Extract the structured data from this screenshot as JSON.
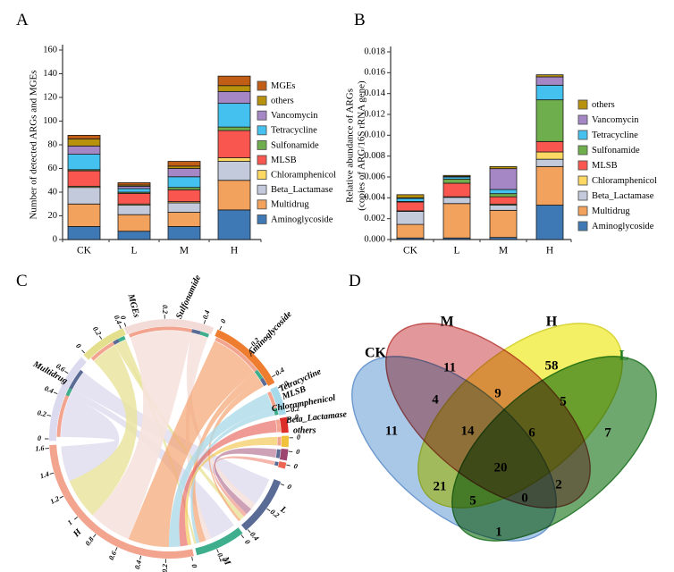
{
  "panels": {
    "a": "A",
    "b": "B",
    "c": "C",
    "d": "D"
  },
  "chart_data": [
    {
      "id": "A",
      "type": "bar",
      "stacked": true,
      "ylabel": "Number of detected ARGs and MGEs",
      "ylim": [
        0,
        160
      ],
      "ytick_step": 20,
      "ytick_decimals": 0,
      "grid": false,
      "legend_position": "right",
      "categories": [
        "CK",
        "L",
        "M",
        "H"
      ],
      "series": [
        {
          "name": "Aminoglycoside",
          "color": "#3e78b5",
          "values": [
            11,
            7,
            11,
            25
          ]
        },
        {
          "name": "Multidrug",
          "color": "#f2a25c",
          "values": [
            19,
            14,
            12,
            25
          ]
        },
        {
          "name": "Beta_Lactamase",
          "color": "#c3cadc",
          "values": [
            14,
            8,
            8,
            16
          ]
        },
        {
          "name": "Chloramphenicol",
          "color": "#fdd964",
          "values": [
            1,
            1,
            1,
            3
          ]
        },
        {
          "name": "MLSB",
          "color": "#f8564f",
          "values": [
            13,
            9,
            10,
            23
          ]
        },
        {
          "name": "Sulfonamide",
          "color": "#6fae4c",
          "values": [
            1,
            1,
            2,
            3
          ]
        },
        {
          "name": "Tetracycline",
          "color": "#45c1f0",
          "values": [
            13,
            3,
            9,
            20
          ]
        },
        {
          "name": "Vancomycin",
          "color": "#a687c6",
          "values": [
            7,
            2,
            7,
            10
          ]
        },
        {
          "name": "others",
          "color": "#b8920d",
          "values": [
            6,
            1,
            2,
            5
          ]
        },
        {
          "name": "MGEs",
          "color": "#c15d15",
          "values": [
            3,
            2,
            4,
            8
          ]
        }
      ]
    },
    {
      "id": "B",
      "type": "bar",
      "stacked": true,
      "ylabel_lines": [
        "Relative abundance of ARGs",
        "(copies of  ARG/16S rRNA gene)"
      ],
      "ylim": [
        0,
        0.018
      ],
      "ytick_step": 0.002,
      "ytick_decimals": 3,
      "grid": false,
      "legend_position": "right",
      "categories": [
        "CK",
        "L",
        "M",
        "H"
      ],
      "series": [
        {
          "name": "Aminoglycoside",
          "color": "#3e78b5",
          "values": [
            0.00015,
            0.00015,
            0.0002,
            0.0033
          ]
        },
        {
          "name": "Multidrug",
          "color": "#f2a25c",
          "values": [
            0.0013,
            0.0033,
            0.0026,
            0.0037
          ]
        },
        {
          "name": "Beta_Lactamase",
          "color": "#c3cadc",
          "values": [
            0.00125,
            0.0006,
            0.0005,
            0.0007
          ]
        },
        {
          "name": "Chloramphenicol",
          "color": "#fdd964",
          "values": [
            5e-05,
            5e-05,
            0.0001,
            0.0007
          ]
        },
        {
          "name": "MLSB",
          "color": "#f8564f",
          "values": [
            0.00085,
            0.0013,
            0.0007,
            0.001
          ]
        },
        {
          "name": "Sulfonamide",
          "color": "#6fae4c",
          "values": [
            5e-05,
            0.0004,
            0.0003,
            0.004
          ]
        },
        {
          "name": "Tetracycline",
          "color": "#45c1f0",
          "values": [
            0.0003,
            0.0002,
            0.0004,
            0.0014
          ]
        },
        {
          "name": "Vancomycin",
          "color": "#a687c6",
          "values": [
            5e-05,
            5e-05,
            0.002,
            0.0008
          ]
        },
        {
          "name": "others",
          "color": "#b8920d",
          "values": [
            0.0003,
            0.0001,
            0.0002,
            0.0002
          ]
        }
      ]
    },
    {
      "id": "C",
      "type": "chord",
      "segments": [
        {
          "name": "Sulfonamide",
          "a0": -22,
          "a1": 22,
          "color": "#f3dcd8",
          "label": {
            "a": 8,
            "r": 160,
            "rot": -65
          },
          "ticks": [
            {
              "t": "0",
              "a": -21
            },
            {
              "t": "0.2",
              "a": -2
            },
            {
              "t": "0.4",
              "a": 17
            }
          ]
        },
        {
          "name": "Aminoglycoside",
          "a0": 24,
          "a1": 62,
          "color": "#ee7d2f",
          "label": {
            "a": 44,
            "r": 163
          },
          "ticks": [
            {
              "t": "0",
              "a": 25
            },
            {
              "t": "0.2",
              "a": 42
            },
            {
              "t": "0.4",
              "a": 59
            }
          ]
        },
        {
          "name": "MLSB",
          "a0": 64,
          "a1": 78,
          "color": "#a6d9e9",
          "label": {
            "a": 70,
            "r": 149
          },
          "ticks": [
            {
              "t": "0",
              "a": 65
            },
            {
              "t": "0.2",
              "a": 77
            }
          ]
        },
        {
          "name": "Tetracycline",
          "a0": 79.5,
          "a1": 87,
          "color": "#dd2f2a",
          "label": {
            "x": 313,
            "y": 136,
            "rot": -24,
            "anchor": "start"
          },
          "ticks": [
            {
              "t": "0",
              "a": 80.5
            }
          ]
        },
        {
          "name": "Chloramphenicol",
          "a0": 88.5,
          "a1": 94,
          "color": "#f1c13b",
          "label": {
            "x": 304,
            "y": 158,
            "rot": -10,
            "anchor": "start"
          },
          "ticks": [
            {
              "t": "0",
              "a": 89.5
            }
          ]
        },
        {
          "name": "Beta_Lactamase",
          "a0": 95,
          "a1": 100.5,
          "color": "#9c4570",
          "label": {
            "x": 320,
            "y": 171,
            "rot": -6,
            "anchor": "start"
          },
          "ticks": [
            {
              "t": "0",
              "a": 96
            }
          ]
        },
        {
          "name": "others",
          "a0": 101.5,
          "a1": 104.5,
          "color": "#ed6652",
          "label": {
            "x": 328,
            "y": 182,
            "rot": 0,
            "anchor": "start"
          },
          "ticks": [
            {
              "t": "0",
              "a": 102.5
            }
          ]
        },
        {
          "name": "L",
          "a0": 111,
          "a1": 140,
          "color": "#5a6b96",
          "label": {
            "a": 122,
            "r": 151
          },
          "ticks": [
            {
              "t": "0",
              "a": 112
            },
            {
              "t": "0.2",
              "a": 125.5
            },
            {
              "t": "0.4",
              "a": 139
            }
          ]
        },
        {
          "name": "M",
          "a0": 142,
          "a1": 166.5,
          "color": "#3fae8c",
          "label": {
            "a": 155,
            "r": 151
          },
          "ticks": [
            {
              "t": "0",
              "a": 143
            },
            {
              "t": "0.2",
              "a": 156.5
            }
          ]
        },
        {
          "name": "H",
          "a0": 168,
          "a1": 267,
          "color": "#f2a48f",
          "label": {
            "a": 224,
            "r": 147
          },
          "ticks": [
            {
              "t": "0",
              "a": 169
            },
            {
              "t": "0.2",
              "a": 181.5
            },
            {
              "t": "0.4",
              "a": 193.5
            },
            {
              "t": "0.6",
              "a": 205.5
            },
            {
              "t": "0.8",
              "a": 217.5
            },
            {
              "t": "1",
              "a": 229.5
            },
            {
              "t": "1.2",
              "a": 241.5
            },
            {
              "t": "1.4",
              "a": 253.5
            },
            {
              "t": "1.6",
              "a": 265.5
            }
          ]
        },
        {
          "name": "Multidrug",
          "a0": 269,
          "a1": 313,
          "color": "#dcdaef",
          "label": {
            "a": 299,
            "r": 152
          },
          "ticks": [
            {
              "t": "0",
              "a": 270
            },
            {
              "t": "0.2",
              "a": 281
            },
            {
              "t": "0.4",
              "a": 292
            },
            {
              "t": "0.6",
              "a": 303
            }
          ]
        },
        {
          "name": "MGEs",
          "a0": 314.5,
          "a1": 337.5,
          "color": "#e4df8d",
          "label": {
            "a": 345,
            "r": 154
          },
          "ticks": [
            {
              "t": "0",
              "a": 315.5
            },
            {
              "t": "0.2",
              "a": 326
            },
            {
              "t": "0.4",
              "a": 336.5
            }
          ]
        }
      ],
      "ribbons": [
        {
          "from": "Multidrug",
          "to": "H",
          "s": [
            271,
            293
          ],
          "t": [
            247,
            266
          ],
          "color": "#dcdaee",
          "op": 0.75
        },
        {
          "from": "Multidrug",
          "to": "M",
          "s": [
            293,
            297
          ],
          "t": [
            143,
            157
          ],
          "color": "#dcdaee",
          "op": 0.75
        },
        {
          "from": "Multidrug",
          "to": "L",
          "s": [
            297,
            308
          ],
          "t": [
            112,
            127
          ],
          "color": "#dcdaee",
          "op": 0.75
        },
        {
          "from": "MGEs",
          "to": "H",
          "s": [
            316,
            330
          ],
          "t": [
            225,
            247
          ],
          "color": "#e9e49a",
          "op": 0.8
        },
        {
          "from": "MGEs",
          "to": "L",
          "s": [
            330,
            333
          ],
          "t": [
            136,
            138.5
          ],
          "color": "#e9e49a",
          "op": 0.8
        },
        {
          "from": "MGEs",
          "to": "M",
          "s": [
            333,
            336.5
          ],
          "t": [
            165.3,
            166.5
          ],
          "color": "#e9e49a",
          "op": 0.8
        },
        {
          "from": "Sulfonamide",
          "to": "H",
          "s": [
            -21,
            12
          ],
          "t": [
            202,
            225
          ],
          "color": "#f6e2de",
          "op": 0.9
        },
        {
          "from": "Sulfonamide",
          "to": "L",
          "s": [
            12,
            16.5
          ],
          "t": [
            127,
            130.5
          ],
          "color": "#f6e2de",
          "op": 0.9
        },
        {
          "from": "Sulfonamide",
          "to": "M",
          "s": [
            16.5,
            21
          ],
          "t": [
            157,
            160
          ],
          "color": "#f6e2de",
          "op": 0.9
        },
        {
          "from": "Aminoglycoside",
          "to": "H",
          "s": [
            25,
            52
          ],
          "t": [
            180,
            202
          ],
          "color": "#f4a472",
          "op": 0.7
        },
        {
          "from": "Aminoglycoside",
          "to": "M",
          "s": [
            52,
            57
          ],
          "t": [
            160,
            163.5
          ],
          "color": "#f4a472",
          "op": 0.7
        },
        {
          "from": "Aminoglycoside",
          "to": "L",
          "s": [
            57,
            61
          ],
          "t": [
            138.5,
            139.8
          ],
          "color": "#f4a472",
          "op": 0.7
        },
        {
          "from": "MLSB",
          "to": "H",
          "s": [
            65,
            74
          ],
          "t": [
            174,
            180
          ],
          "color": "#aedbe9",
          "op": 0.8
        },
        {
          "from": "MLSB",
          "to": "M",
          "s": [
            74,
            77.5
          ],
          "t": [
            163.5,
            165.3
          ],
          "color": "#aedbe9",
          "op": 0.8
        },
        {
          "from": "Tetracycline",
          "to": "H",
          "s": [
            80,
            86.5
          ],
          "t": [
            170,
            174
          ],
          "color": "#e4574e",
          "op": 0.6
        },
        {
          "from": "Chloramphenicol",
          "to": "H",
          "s": [
            89,
            93.5
          ],
          "t": [
            168,
            170
          ],
          "color": "#f2c54f",
          "op": 0.65
        },
        {
          "from": "Beta_Lactamase",
          "to": "L",
          "s": [
            95.5,
            100
          ],
          "t": [
            130.5,
            134
          ],
          "color": "#9c4570",
          "op": 0.5
        },
        {
          "from": "others",
          "to": "L",
          "s": [
            102,
            104
          ],
          "t": [
            134,
            136
          ],
          "color": "#ee8574",
          "op": 0.6
        }
      ]
    },
    {
      "id": "D",
      "type": "venn4",
      "sets": [
        {
          "name": "CK",
          "fill": "#a9c7e6",
          "stroke": "#6b98cf",
          "label_color": "#000000"
        },
        {
          "name": "M",
          "fill": "#e2989a",
          "stroke": "#c0504d",
          "label_color": "#000000"
        },
        {
          "name": "H",
          "fill": "#f3f066",
          "stroke": "#d6d337",
          "label_color": "#000000"
        },
        {
          "name": "L",
          "fill": "#6fa86f",
          "stroke": "#2f7d32",
          "label_color": "#1e7b1e"
        }
      ],
      "regions": [
        {
          "sets": "CK",
          "value": 11
        },
        {
          "sets": "M",
          "value": 11
        },
        {
          "sets": "H",
          "value": 58
        },
        {
          "sets": "L",
          "value": 7
        },
        {
          "sets": "CK∩M",
          "value": 4
        },
        {
          "sets": "M∩H",
          "value": 9
        },
        {
          "sets": "H∩L",
          "value": 5
        },
        {
          "sets": "CK∩H",
          "value": 21
        },
        {
          "sets": "M∩L",
          "value": 2
        },
        {
          "sets": "CK∩L",
          "value": 1
        },
        {
          "sets": "CK∩M∩H",
          "value": 14
        },
        {
          "sets": "M∩H∩L",
          "value": 6
        },
        {
          "sets": "CK∩H∩L",
          "value": 5
        },
        {
          "sets": "CK∩M∩L",
          "value": 0
        },
        {
          "sets": "CK∩M∩H∩L",
          "value": 20
        }
      ]
    }
  ]
}
